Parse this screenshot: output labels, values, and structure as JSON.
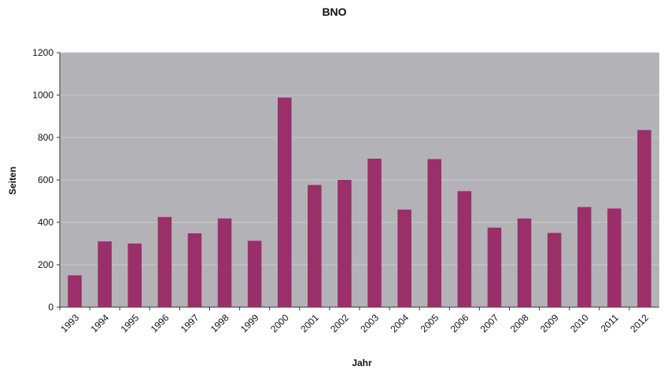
{
  "chart_data": {
    "type": "bar",
    "title": "BNO",
    "xlabel": "Jahr",
    "ylabel": "Seiten",
    "ylim": [
      0,
      1200
    ],
    "yticks": [
      0,
      200,
      400,
      600,
      800,
      1000,
      1200
    ],
    "categories": [
      "1993",
      "1994",
      "1995",
      "1996",
      "1997",
      "1998",
      "1999",
      "2000",
      "2001",
      "2002",
      "2003",
      "2004",
      "2005",
      "2006",
      "2007",
      "2008",
      "2009",
      "2010",
      "2011",
      "2012"
    ],
    "values": [
      150,
      310,
      300,
      425,
      348,
      418,
      313,
      988,
      576,
      600,
      700,
      460,
      698,
      547,
      375,
      418,
      350,
      472,
      465,
      835
    ],
    "grid": true,
    "legend": "none",
    "colors": {
      "bar": "#9a2f6a",
      "plot_background": "#b3b3b7",
      "gridline": "#c8c8cc",
      "axis": "#333333"
    }
  }
}
